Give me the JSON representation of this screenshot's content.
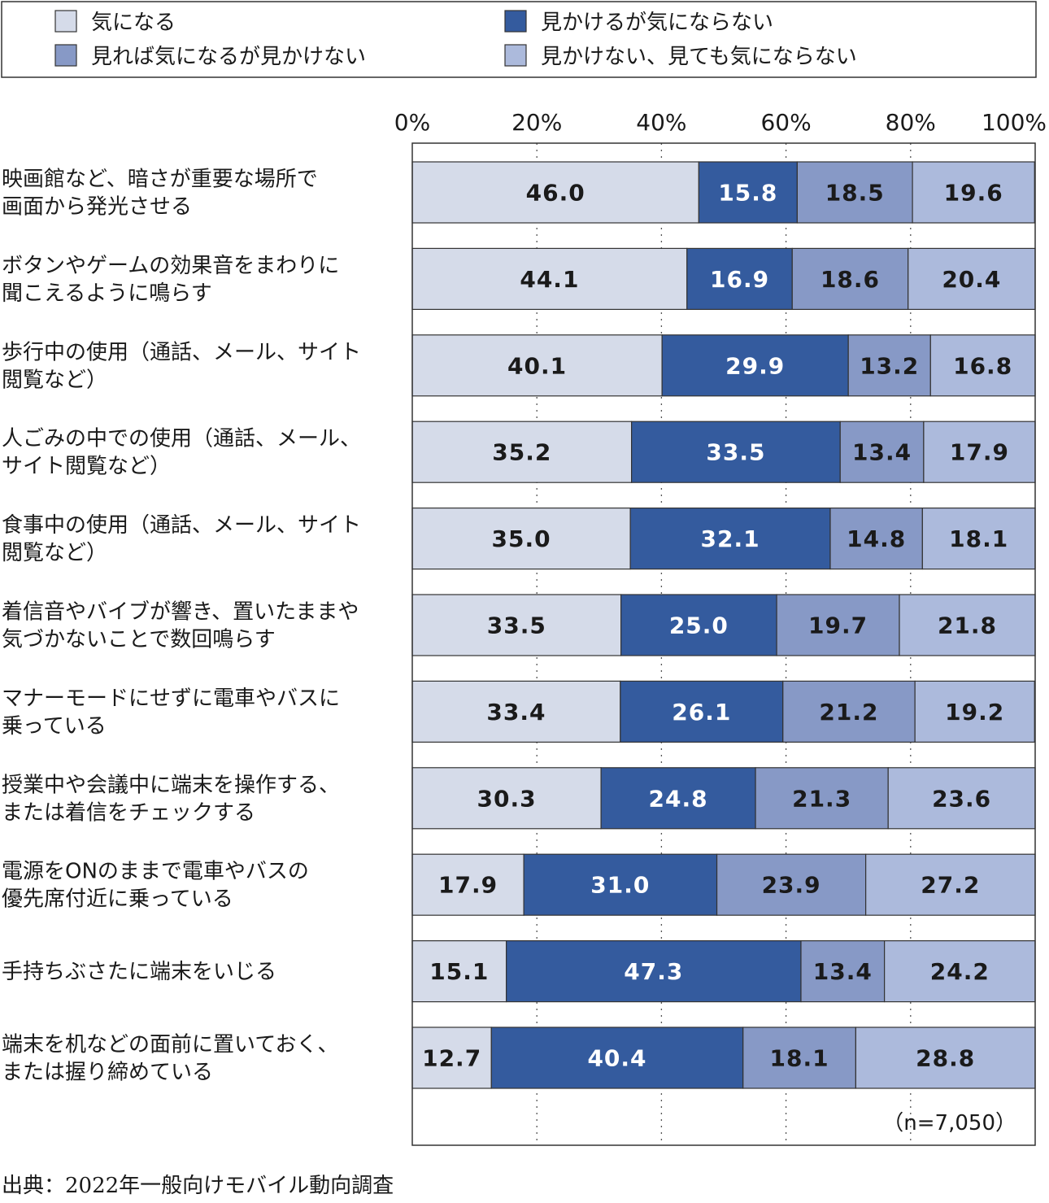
{
  "chart_data": {
    "type": "bar",
    "orientation": "horizontal",
    "stacked": true,
    "xlim": [
      0,
      100
    ],
    "x_ticks": [
      "0%",
      "20%",
      "40%",
      "60%",
      "80%",
      "100%"
    ],
    "grid": "dotted vertical",
    "legend_position": "top",
    "categories": [
      [
        "映画館など、暗さが重要な場所で",
        "画面から発光させる"
      ],
      [
        "ボタンやゲームの効果音をまわりに",
        "聞こえるように鳴らす"
      ],
      [
        "歩行中の使用（通話、メール、サイト",
        "閲覧など）"
      ],
      [
        "人ごみの中での使用（通話、メール、",
        "サイト閲覧など）"
      ],
      [
        "食事中の使用（通話、メール、サイト",
        "閲覧など）"
      ],
      [
        "着信音やバイブが響き、置いたままや",
        "気づかないことで数回鳴らす"
      ],
      [
        "マナーモードにせずに電車やバスに",
        "乗っている"
      ],
      [
        "授業中や会議中に端末を操作する、",
        "または着信をチェックする"
      ],
      [
        "電源をONのままで電車やバスの",
        "優先席付近に乗っている"
      ],
      [
        "手持ちぶさたに端末をいじる"
      ],
      [
        "端末を机などの面前に置いておく、",
        "または握り締めている"
      ]
    ],
    "series": [
      {
        "name": "気になる",
        "color": "#d5dbe9",
        "label_color": "#1a1a1a",
        "legend_slot": 0,
        "values": [
          46.0,
          44.1,
          40.1,
          35.2,
          35.0,
          33.5,
          33.4,
          30.3,
          17.9,
          15.1,
          12.7
        ],
        "labels": [
          "46.0",
          "44.1",
          "40.1",
          "35.2",
          "35.0",
          "33.5",
          "33.4",
          "30.3",
          "17.9",
          "15.1",
          "12.7"
        ]
      },
      {
        "name": "見かけるが気にならない",
        "color": "#345b9e",
        "label_color": "#ffffff",
        "legend_slot": 1,
        "values": [
          15.8,
          16.9,
          29.9,
          33.5,
          32.1,
          25.0,
          26.1,
          24.8,
          31.0,
          47.3,
          40.4
        ],
        "labels": [
          "15.8",
          "16.9",
          "29.9",
          "33.5",
          "32.1",
          "25.0",
          "26.1",
          "24.8",
          "31.0",
          "47.3",
          "40.4"
        ]
      },
      {
        "name": "見れば気になるが見かけない",
        "color": "#8799c6",
        "label_color": "#1a1a1a",
        "legend_slot": 2,
        "values": [
          18.5,
          18.6,
          13.2,
          13.4,
          14.8,
          19.7,
          21.2,
          21.3,
          23.9,
          13.4,
          18.1
        ],
        "labels": [
          "18.5",
          "18.6",
          "13.2",
          "13.4",
          "14.8",
          "19.7",
          "21.2",
          "21.3",
          "23.9",
          "13.4",
          "18.1"
        ]
      },
      {
        "name": "見かけない、見ても気にならない",
        "color": "#acbadc",
        "label_color": "#1a1a1a",
        "legend_slot": 3,
        "values": [
          19.6,
          20.4,
          16.8,
          17.9,
          18.1,
          21.8,
          19.2,
          23.6,
          27.2,
          24.2,
          28.8
        ],
        "labels": [
          "19.6",
          "20.4",
          "16.8",
          "17.9",
          "18.1",
          "21.8",
          "19.2",
          "23.6",
          "27.2",
          "24.2",
          "28.8"
        ]
      }
    ],
    "note": "（n=7,050）",
    "source": "出典：2022年一般向けモバイル動向調査"
  }
}
